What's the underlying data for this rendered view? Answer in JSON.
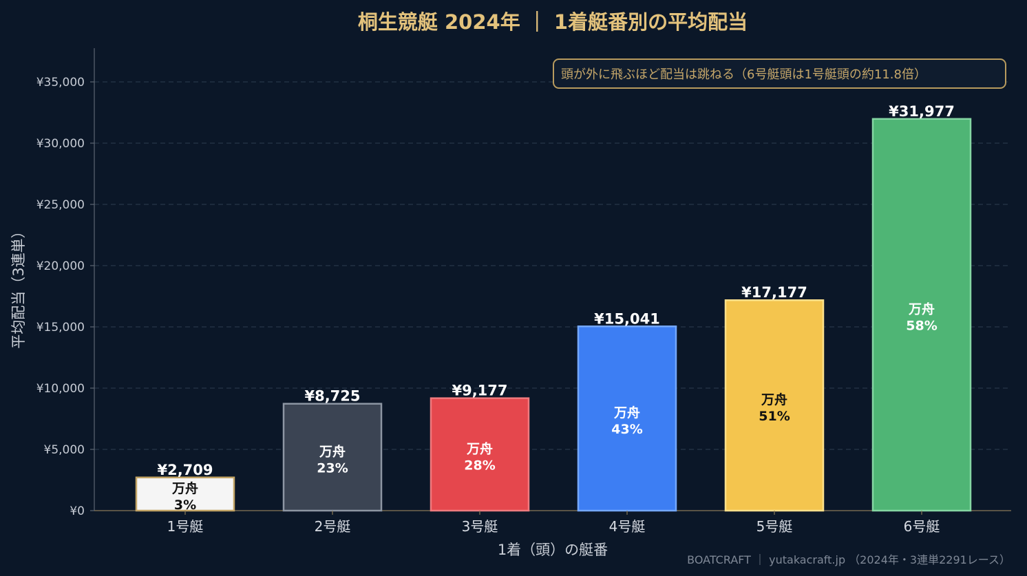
{
  "chart_data": {
    "type": "bar",
    "title": "桐生競艇 2024年 ｜ 1着艇番別の平均配当",
    "xlabel": "1着（頭）の艇番",
    "ylabel": "平均配当（3連単）",
    "categories": [
      "1号艇",
      "2号艇",
      "3号艇",
      "4号艇",
      "5号艇",
      "6号艇"
    ],
    "values": [
      2709,
      8725,
      9177,
      15041,
      17177,
      31977
    ],
    "value_labels": [
      "¥2,709",
      "¥8,725",
      "¥9,177",
      "¥15,041",
      "¥17,177",
      "¥31,977"
    ],
    "manshu_label": "万舟",
    "manshu_rates": [
      "3%",
      "23%",
      "28%",
      "43%",
      "51%",
      "58%"
    ],
    "bar_colors": [
      "#f5f5f5",
      "#3b4453",
      "#e5474d",
      "#3d7ef3",
      "#f4c54e",
      "#4fb575"
    ],
    "bar_border_colors": [
      "#c3a465",
      "#8d96a3",
      "#f07a7e",
      "#74a8ff",
      "#fde08a",
      "#85d6a3"
    ],
    "inner_text_colors": [
      "#111111",
      "#ffffff",
      "#ffffff",
      "#ffffff",
      "#111111",
      "#ffffff"
    ],
    "ylim": [
      0,
      37800
    ],
    "yticks": [
      0,
      5000,
      10000,
      15000,
      20000,
      25000,
      30000,
      35000
    ],
    "ytick_labels": [
      "¥0",
      "¥5,000",
      "¥10,000",
      "¥15,000",
      "¥20,000",
      "¥25,000",
      "¥30,000",
      "¥35,000"
    ],
    "grid": true,
    "annotation": "頭が外に飛ぶほど配当は跳ねる（6号艇頭は1号艇頭の約11.8倍）",
    "footer": "BOATCRAFT ｜ yutakacraft.jp （2024年・3連単2291レース）"
  },
  "colors": {
    "background": "#0b1728",
    "title": "#e3c27c",
    "annotation_border": "#b89b5e"
  }
}
